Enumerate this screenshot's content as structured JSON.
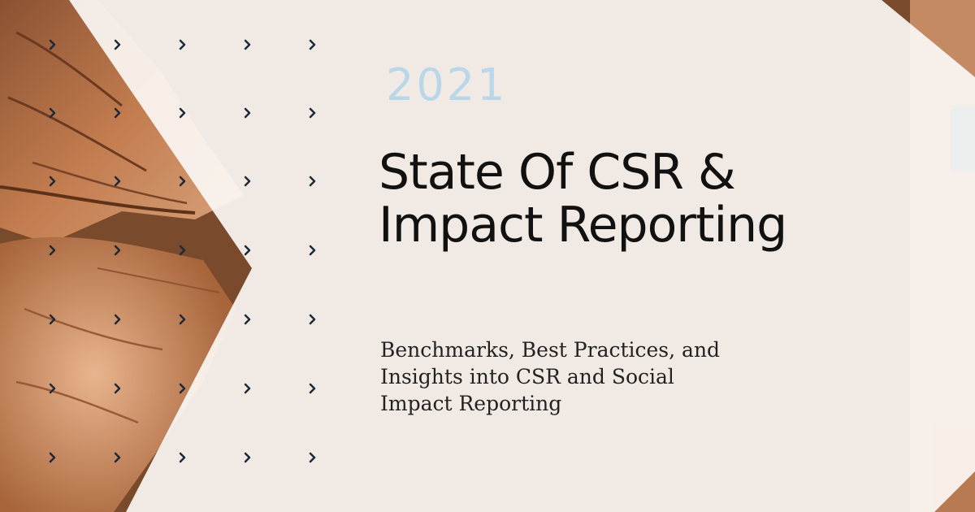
{
  "hero": {
    "year": "2021",
    "title_lines": [
      "State Of CSR &",
      "Impact Reporting"
    ],
    "subtitle_lines": [
      "Benchmarks, Best Practices, and",
      "Insights into CSR and Social",
      "Impact Reporting"
    ]
  },
  "decor": {
    "chevron_icon": "chevron-right-icon",
    "chevron_color": "#1e2a3a",
    "year_color": "#b9d7e9",
    "overlay_color": "#fbf7f4",
    "skin_tones": [
      "#c88659",
      "#a9683f",
      "#6b3f23",
      "#e6b896"
    ]
  }
}
